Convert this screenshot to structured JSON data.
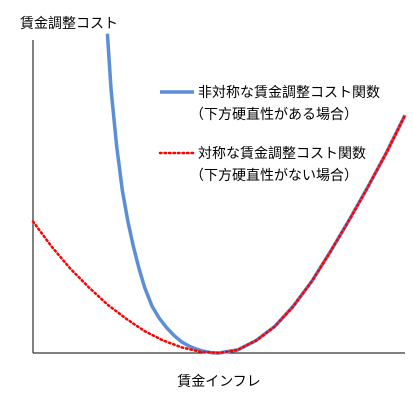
{
  "chart_data": {
    "type": "line",
    "title": "",
    "xlabel": "賃金インフレ",
    "ylabel": "賃金調整コスト",
    "grid": false,
    "legend_position": "top-right",
    "x_range": [
      -1.0,
      1.0
    ],
    "y_range": [
      0,
      1.0
    ],
    "colors": {
      "asymmetric": "#5B8ED6",
      "symmetric": "#FF0000",
      "axis": "#000000"
    },
    "series": [
      {
        "name": "非対称な賃金調整コスト関数",
        "name_line2": "（下方硬直性がある場合）",
        "style": "solid",
        "x": [
          -0.6,
          -0.58,
          -0.55,
          -0.52,
          -0.49,
          -0.46,
          -0.43,
          -0.4,
          -0.36,
          -0.32,
          -0.28,
          -0.24,
          -0.2,
          -0.16,
          -0.12,
          -0.08,
          -0.04,
          0.0,
          0.1,
          0.2,
          0.3,
          0.4,
          0.5,
          0.6,
          0.7,
          0.8,
          0.9,
          1.0
        ],
        "y": [
          1.02,
          0.84,
          0.66,
          0.52,
          0.42,
          0.34,
          0.27,
          0.21,
          0.15,
          0.11,
          0.08,
          0.055,
          0.035,
          0.022,
          0.012,
          0.005,
          0.001,
          0.0,
          0.01,
          0.04,
          0.085,
          0.15,
          0.23,
          0.325,
          0.425,
          0.53,
          0.64,
          0.76
        ]
      },
      {
        "name": "対称な賃金調整コスト関数",
        "name_line2": "（下方硬直性がない場合）",
        "style": "dotted",
        "x": [
          -1.0,
          -0.9,
          -0.8,
          -0.7,
          -0.6,
          -0.5,
          -0.4,
          -0.3,
          -0.2,
          -0.1,
          0.0,
          0.1,
          0.2,
          0.3,
          0.4,
          0.5,
          0.6,
          0.7,
          0.8,
          0.9,
          1.0
        ],
        "y": [
          0.42,
          0.34,
          0.27,
          0.21,
          0.155,
          0.11,
          0.07,
          0.04,
          0.018,
          0.004,
          0.0,
          0.01,
          0.04,
          0.085,
          0.15,
          0.23,
          0.325,
          0.425,
          0.53,
          0.64,
          0.76
        ]
      }
    ]
  }
}
